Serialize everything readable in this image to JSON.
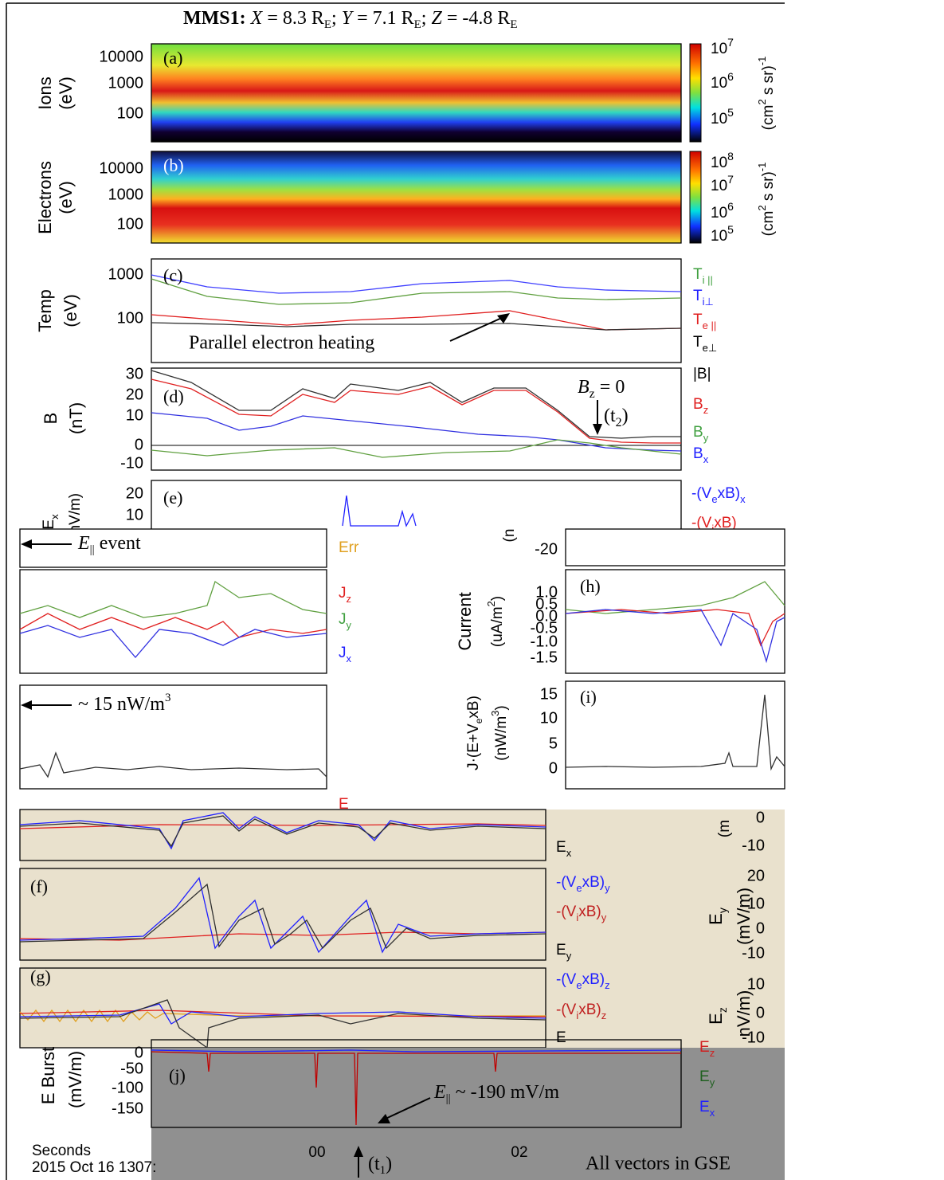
{
  "title": {
    "sc": "MMS1:",
    "parts": [
      "X",
      " = 8.3 R",
      "E",
      "; ",
      "Y",
      " = 7.1 R",
      "E",
      "; ",
      "Z",
      " = -4.8 R",
      "E"
    ]
  },
  "panel_a": {
    "label": "(a)",
    "ylabel": [
      "Ions",
      "(eV)"
    ],
    "yticks": [
      "10000",
      "1000",
      "100"
    ],
    "cbar_ticks": [
      [
        "10",
        "7"
      ],
      [
        "10",
        "6"
      ],
      [
        "10",
        "5"
      ]
    ],
    "cbar_label": [
      "(cm",
      "2",
      " s sr)",
      "-1"
    ]
  },
  "panel_b": {
    "label": "(b)",
    "ylabel": [
      "Electrons",
      "(eV)"
    ],
    "yticks": [
      "10000",
      "1000",
      "100"
    ],
    "cbar_ticks": [
      [
        "10",
        "8"
      ],
      [
        "10",
        "7"
      ],
      [
        "10",
        "6"
      ],
      [
        "10",
        "5"
      ]
    ],
    "cbar_label": [
      "(cm",
      "2",
      " s sr)",
      "-1"
    ]
  },
  "panel_c": {
    "label": "(c)",
    "ylabel": [
      "Temp",
      "(eV)"
    ],
    "yticks": [
      "1000",
      "100"
    ],
    "legend": [
      [
        "T",
        "i ||"
      ],
      [
        "T",
        "i⊥"
      ],
      [
        "T",
        "e ||"
      ],
      [
        "T",
        "e⊥"
      ]
    ],
    "annotation": "Parallel electron heating"
  },
  "panel_d": {
    "label": "(d)",
    "ylabel": [
      "B",
      "(nT)"
    ],
    "yticks": [
      "30",
      "20",
      "10",
      "0",
      "-10"
    ],
    "legend": [
      [
        "|B|",
        ""
      ],
      [
        "B",
        "z"
      ],
      [
        "B",
        "y"
      ],
      [
        "B",
        "x"
      ]
    ],
    "annotation": [
      "B",
      "z",
      " = 0",
      "(t",
      "2",
      ")"
    ]
  },
  "panel_e": {
    "label": "(e)",
    "ylabel": [
      "E",
      "x",
      "(mV/m)"
    ],
    "yticks": [
      "20",
      "10"
    ],
    "legend": [
      "-(V",
      "e",
      "xB)",
      "x",
      "-(V",
      "i",
      "xB)"
    ]
  },
  "middle_left": {
    "event": [
      "E",
      "||",
      " event"
    ],
    "err": "Err",
    "legend": [
      [
        "J",
        "z"
      ],
      [
        "J",
        "y"
      ],
      [
        "J",
        "x"
      ]
    ],
    "power": [
      "~ 15 nW/m",
      "3"
    ],
    "e_cut": "E"
  },
  "panel_h": {
    "label": "(h)",
    "ylabel": [
      "Current",
      "(uA/m",
      "2",
      ")"
    ],
    "yticks": [
      "1.0",
      "0.5",
      "0.0",
      "-0.5",
      "-1.0",
      "-1.5"
    ],
    "top_tick": "-20",
    "top_unit": "(n"
  },
  "panel_i": {
    "label": "(i)",
    "ylabel": [
      "J·(E+V",
      "e",
      "xB)",
      "(nW/m",
      "3",
      ")"
    ],
    "yticks": [
      "15",
      "10",
      "5",
      "0"
    ]
  },
  "panel_ex": {
    "legend": [
      "E",
      "x"
    ],
    "right_ticks": [
      "0",
      "-10"
    ],
    "right_unit": "(m"
  },
  "panel_f": {
    "label": "(f)",
    "legend": [
      [
        "-(V",
        "e",
        "xB)",
        "y"
      ],
      [
        "-(V",
        "i",
        "xB)",
        "y"
      ],
      [
        "E",
        "y",
        "",
        ""
      ]
    ],
    "right_ticks": [
      "20",
      "10",
      "0",
      "-10"
    ],
    "right_ylabel": [
      "E",
      "y",
      "(mV/m)"
    ]
  },
  "panel_g": {
    "label": "(g)",
    "legend": [
      [
        "-(V",
        "e",
        "xB)",
        "z"
      ],
      [
        "-(V",
        "i",
        "xB)",
        "z"
      ],
      [
        "E",
        "",
        "",
        ""
      ]
    ],
    "right_ticks": [
      "10",
      "0",
      "-10"
    ],
    "right_ylabel": [
      "E",
      "z",
      "nV/m)"
    ]
  },
  "panel_j": {
    "label": "(j)",
    "ylabel": [
      "E Burst",
      "(mV/m)"
    ],
    "yticks": [
      "0",
      "-50",
      "-100",
      "-150"
    ],
    "legend": [
      [
        "E",
        "z"
      ],
      [
        "E",
        "y"
      ],
      [
        "E",
        "x"
      ]
    ],
    "annotation": [
      "E",
      "||",
      " ~ -190 mV/m"
    ]
  },
  "footer": {
    "xlabel": [
      "Seconds",
      "2015 Oct 16 1307:"
    ],
    "xticks": [
      "00",
      "02"
    ],
    "marker": [
      "(t",
      "1",
      ")"
    ],
    "note": "All vectors in GSE"
  }
}
